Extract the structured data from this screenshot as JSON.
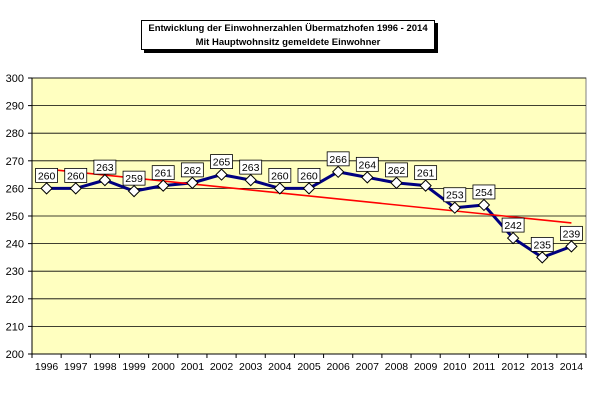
{
  "chart_data": {
    "type": "line",
    "title": "Entwicklung der Einwohnerzahlen Übermatzhofen 1996 - 2014",
    "subtitle": "Mit Hauptwohnsitz gemeldete Einwohner",
    "categories": [
      "1996",
      "1997",
      "1998",
      "1999",
      "2000",
      "2001",
      "2002",
      "2003",
      "2004",
      "2005",
      "2006",
      "2007",
      "2008",
      "2009",
      "2010",
      "2011",
      "2012",
      "2013",
      "2014"
    ],
    "series": [
      {
        "values": [
          260,
          260,
          263,
          259,
          261,
          262,
          265,
          263,
          260,
          260,
          266,
          264,
          262,
          261,
          253,
          254,
          242,
          235,
          239
        ],
        "color": "#000080",
        "marker": "diamond"
      }
    ],
    "trendline": {
      "start": 267,
      "end": 247.5,
      "color": "#ff0000"
    },
    "data_labels": [
      "260",
      "260",
      "263",
      "259",
      "261",
      "262",
      "265",
      "263",
      "260",
      "260",
      "266",
      "264",
      "262",
      "261",
      "253",
      "254",
      "242",
      "235",
      "239"
    ],
    "y_ticks": [
      "200",
      "210",
      "220",
      "230",
      "240",
      "250",
      "260",
      "270",
      "280",
      "290",
      "300"
    ],
    "ylim": [
      200,
      300
    ],
    "ystep": 10,
    "grid": true,
    "plot_background": "#ffffc0",
    "grid_color": "#000000"
  }
}
